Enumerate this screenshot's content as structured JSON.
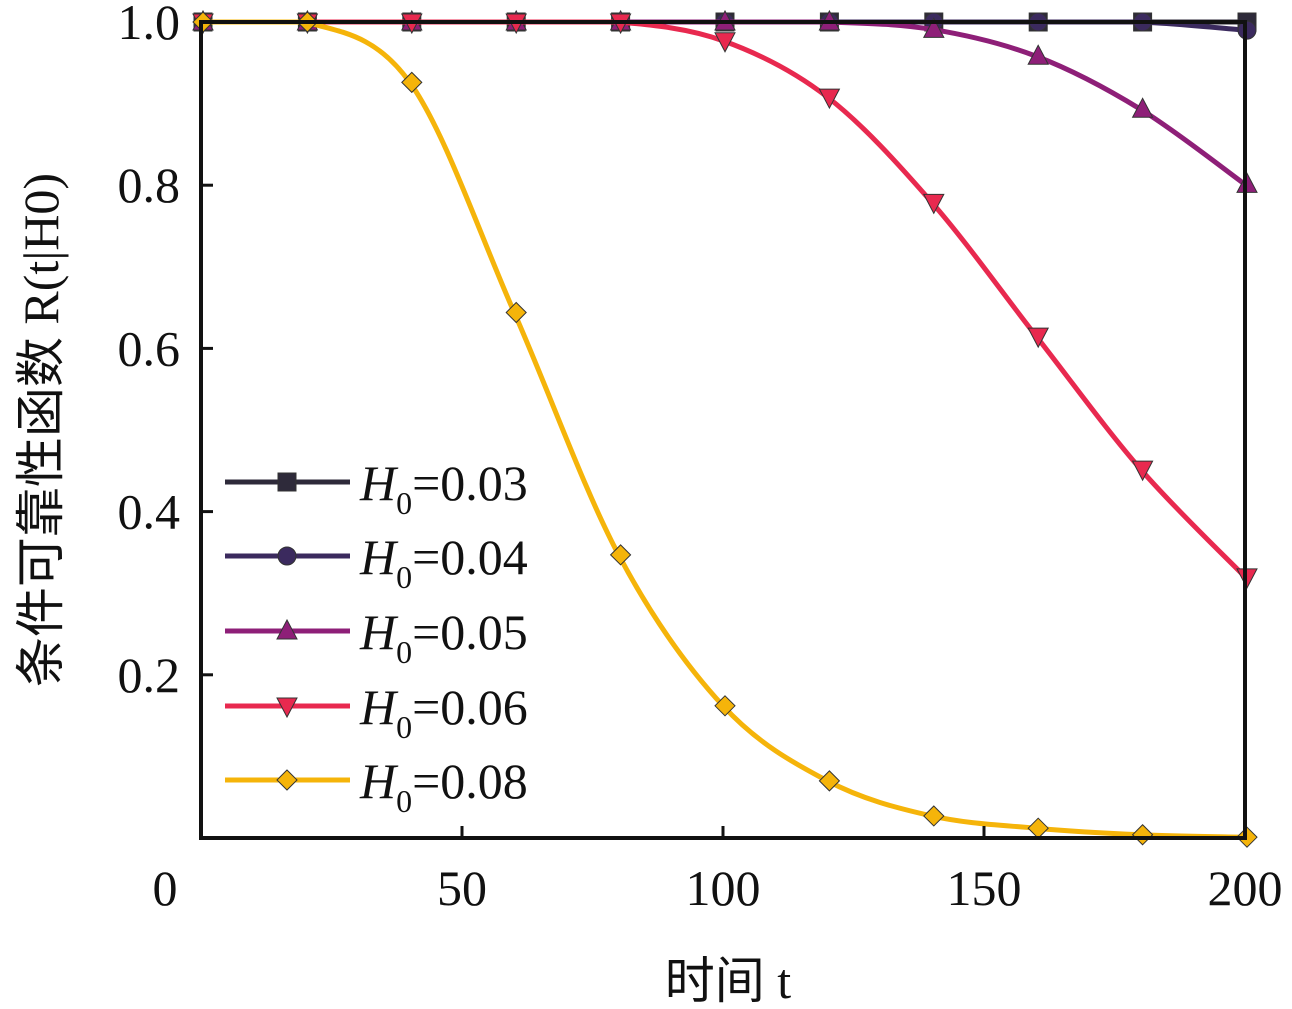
{
  "chart_data": {
    "type": "line",
    "title": "",
    "xlabel": "时间 t",
    "ylabel": "条件可靠性函数 R(t|H0)",
    "xlim": [
      0,
      200
    ],
    "ylim": [
      0,
      1.0
    ],
    "x_ticks": [
      "0",
      "50",
      "100",
      "150",
      "200"
    ],
    "x_tick_values": [
      0,
      50,
      100,
      150,
      200
    ],
    "y_ticks": [
      "0.2",
      "0.4",
      "0.6",
      "0.8",
      "1.0"
    ],
    "y_tick_values": [
      0.2,
      0.4,
      0.6,
      0.8,
      1.0
    ],
    "grid": false,
    "legend_position": "left-bottom",
    "x": [
      0,
      20,
      40,
      60,
      80,
      100,
      120,
      140,
      160,
      180,
      200
    ],
    "series": [
      {
        "name": "H0=0.03",
        "label_main": "H",
        "label_sub": "0",
        "label_value": "=0.03",
        "color": "#2e2a3a",
        "marker": "square",
        "values": [
          1,
          1,
          1,
          1,
          1,
          1,
          1,
          1,
          1,
          1,
          1
        ]
      },
      {
        "name": "H0=0.04",
        "label_main": "H",
        "label_sub": "0",
        "label_value": "=0.04",
        "color": "#3b2a5e",
        "marker": "circle",
        "values": [
          1,
          1,
          1,
          1,
          1,
          1,
          1,
          1,
          1,
          1,
          0.99
        ]
      },
      {
        "name": "H0=0.05",
        "label_main": "H",
        "label_sub": "0",
        "label_value": "=0.05",
        "color": "#8e1f78",
        "marker": "triangle-up",
        "values": [
          1,
          1,
          1,
          1,
          1,
          1,
          1,
          0.991,
          0.958,
          0.893,
          0.801
        ]
      },
      {
        "name": "H0=0.06",
        "label_main": "H",
        "label_sub": "0",
        "label_value": "=0.06",
        "color": "#e8294f",
        "marker": "triangle-down",
        "values": [
          1,
          1,
          1,
          1,
          1,
          0.977,
          0.908,
          0.779,
          0.615,
          0.452,
          0.32
        ]
      },
      {
        "name": "H0=0.08",
        "label_main": "H",
        "label_sub": "0",
        "label_value": "=0.08",
        "color": "#f5b40a",
        "marker": "diamond",
        "values": [
          1,
          1,
          0.926,
          0.644,
          0.347,
          0.162,
          0.07,
          0.027,
          0.012,
          0.004,
          0.001
        ]
      }
    ]
  }
}
